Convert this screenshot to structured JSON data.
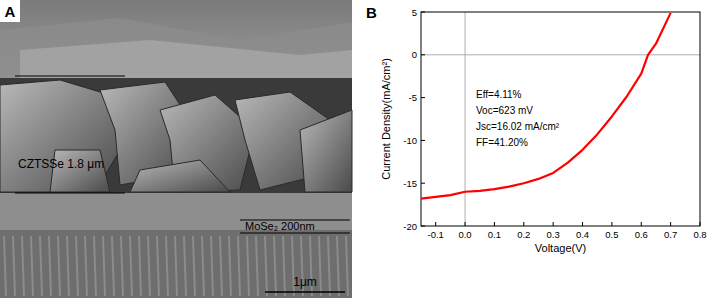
{
  "panel_a": {
    "label": "A",
    "layer_label": "CZTSSe  1.8 μm",
    "mose_label": "MoSe₂ 200nm",
    "scale_bar": "1μm"
  },
  "chart_data": {
    "type": "line",
    "panel_label": "B",
    "x_label": "Voltage(V)",
    "y_label": "Current Density(mA/cm²)",
    "annotations": [
      "Eff=4.11%",
      "Voc=623 mV",
      "Jsc=16.02 mA/cm²",
      "FF=41.20%"
    ],
    "x": [
      -0.15,
      -0.1,
      -0.05,
      0,
      0.05,
      0.1,
      0.15,
      0.2,
      0.25,
      0.3,
      0.35,
      0.4,
      0.45,
      0.5,
      0.55,
      0.6,
      0.623,
      0.65,
      0.7
    ],
    "series": [
      {
        "color": "#ff0000",
        "values": [
          -16.8,
          -16.6,
          -16.4,
          -16.0,
          -15.9,
          -15.7,
          -15.4,
          -15.0,
          -14.5,
          -13.8,
          -12.6,
          -11.1,
          -9.3,
          -7.2,
          -4.9,
          -2.2,
          0,
          1.3,
          4.9
        ]
      }
    ],
    "xlim": [
      -0.15,
      0.8
    ],
    "xticks": [
      -0.1,
      {
        "value": 0,
        "label": "0.0"
      },
      0.1,
      0.2,
      0.3,
      0.4,
      0.5,
      0.6,
      0.7,
      0.8
    ],
    "ylim": [
      -20,
      5
    ],
    "yticks": [
      -20,
      -15,
      -10,
      -5,
      0,
      5
    ],
    "grid": false
  }
}
